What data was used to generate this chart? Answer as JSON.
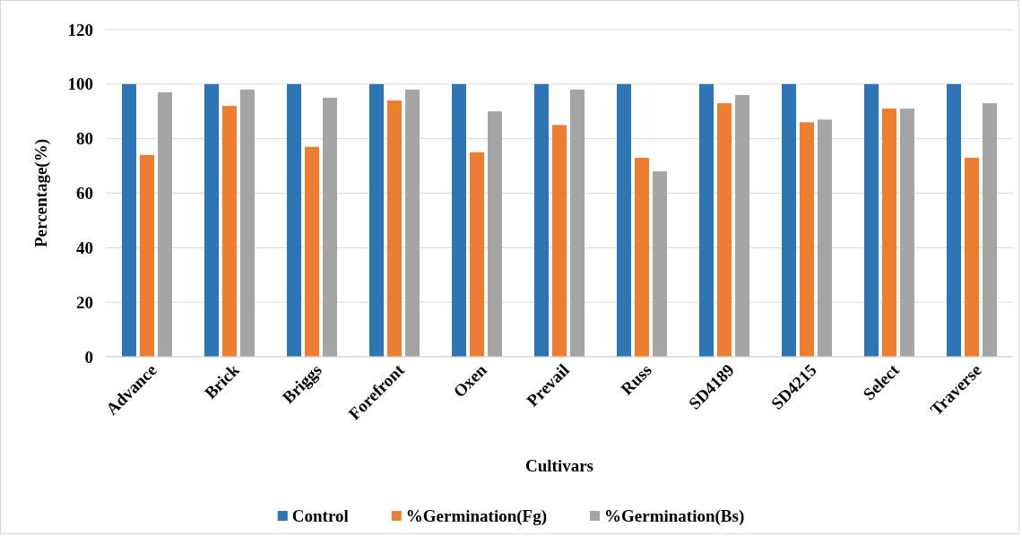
{
  "chart_data": {
    "type": "bar",
    "xlabel": "Cultivars",
    "ylabel": "Percentage(%)",
    "categories": [
      "Advance",
      "Brick",
      "Briggs",
      "Forefront",
      "Oxen",
      "Prevail",
      "Russ",
      "SD4189",
      "SD4215",
      "Select",
      "Traverse"
    ],
    "series": [
      {
        "name": "Control",
        "color": "#2e75b6",
        "values": [
          100,
          100,
          100,
          100,
          100,
          100,
          100,
          100,
          100,
          100,
          100
        ]
      },
      {
        "name": "%Germination(Fg)",
        "color": "#ed7d31",
        "values": [
          74,
          92,
          77,
          94,
          75,
          85,
          73,
          93,
          86,
          91,
          73
        ]
      },
      {
        "name": "%Germination(Bs)",
        "color": "#a5a5a5",
        "values": [
          97,
          98,
          95,
          98,
          90,
          98,
          68,
          96,
          87,
          91,
          93
        ]
      }
    ],
    "ylim": [
      0,
      120
    ],
    "yticks": [
      0,
      20,
      40,
      60,
      80,
      100,
      120
    ],
    "grid": "y",
    "legend": "bottom"
  }
}
